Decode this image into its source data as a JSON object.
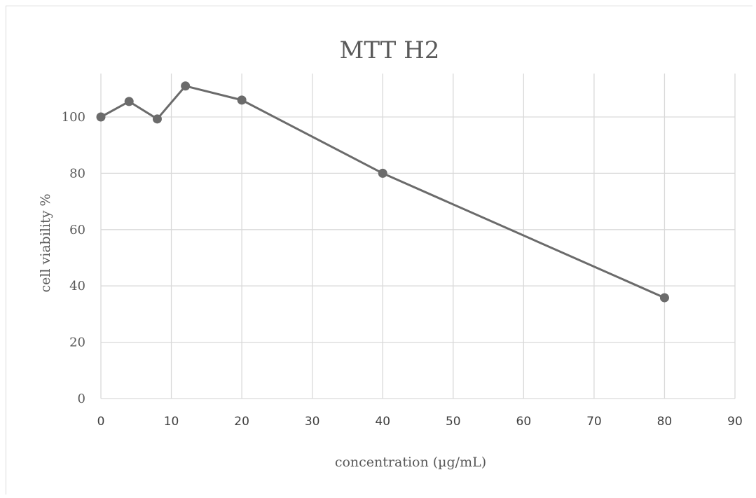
{
  "chart_data": {
    "type": "line",
    "title": "MTT H2",
    "xlabel": "concentration (µg/mL)",
    "ylabel": "cell viability %",
    "xlim": [
      0,
      90
    ],
    "ylim": [
      0,
      112
    ],
    "xticks": [
      0,
      10,
      20,
      30,
      40,
      50,
      60,
      70,
      80,
      90
    ],
    "yticks": [
      0,
      20,
      40,
      60,
      80,
      100
    ],
    "grid": true,
    "legend": "none",
    "series": [
      {
        "x": [
          0,
          4,
          8,
          12,
          20,
          40,
          80
        ],
        "y": [
          100,
          105.5,
          99.3,
          111,
          106,
          80,
          35.8
        ],
        "color": "#6b6b6b"
      }
    ]
  }
}
